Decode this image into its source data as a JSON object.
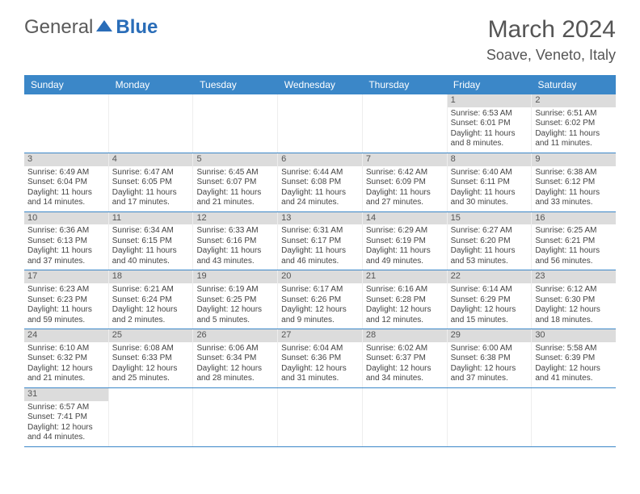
{
  "brand": {
    "part1": "General",
    "part2": "Blue"
  },
  "title": "March 2024",
  "location": "Soave, Veneto, Italy",
  "day_headers": [
    "Sunday",
    "Monday",
    "Tuesday",
    "Wednesday",
    "Thursday",
    "Friday",
    "Saturday"
  ],
  "colors": {
    "header_bg": "#3b87c8",
    "header_text": "#ffffff",
    "cell_head_bg": "#dcdcdc",
    "row_divider": "#3b87c8",
    "text": "#444444",
    "logo_gray": "#5a5a5a",
    "logo_blue": "#2a6db8"
  },
  "weeks": [
    [
      {
        "empty": true
      },
      {
        "empty": true
      },
      {
        "empty": true
      },
      {
        "empty": true
      },
      {
        "empty": true
      },
      {
        "num": "1",
        "sunrise": "Sunrise: 6:53 AM",
        "sunset": "Sunset: 6:01 PM",
        "daylight": "Daylight: 11 hours and 8 minutes."
      },
      {
        "num": "2",
        "sunrise": "Sunrise: 6:51 AM",
        "sunset": "Sunset: 6:02 PM",
        "daylight": "Daylight: 11 hours and 11 minutes."
      }
    ],
    [
      {
        "num": "3",
        "sunrise": "Sunrise: 6:49 AM",
        "sunset": "Sunset: 6:04 PM",
        "daylight": "Daylight: 11 hours and 14 minutes."
      },
      {
        "num": "4",
        "sunrise": "Sunrise: 6:47 AM",
        "sunset": "Sunset: 6:05 PM",
        "daylight": "Daylight: 11 hours and 17 minutes."
      },
      {
        "num": "5",
        "sunrise": "Sunrise: 6:45 AM",
        "sunset": "Sunset: 6:07 PM",
        "daylight": "Daylight: 11 hours and 21 minutes."
      },
      {
        "num": "6",
        "sunrise": "Sunrise: 6:44 AM",
        "sunset": "Sunset: 6:08 PM",
        "daylight": "Daylight: 11 hours and 24 minutes."
      },
      {
        "num": "7",
        "sunrise": "Sunrise: 6:42 AM",
        "sunset": "Sunset: 6:09 PM",
        "daylight": "Daylight: 11 hours and 27 minutes."
      },
      {
        "num": "8",
        "sunrise": "Sunrise: 6:40 AM",
        "sunset": "Sunset: 6:11 PM",
        "daylight": "Daylight: 11 hours and 30 minutes."
      },
      {
        "num": "9",
        "sunrise": "Sunrise: 6:38 AM",
        "sunset": "Sunset: 6:12 PM",
        "daylight": "Daylight: 11 hours and 33 minutes."
      }
    ],
    [
      {
        "num": "10",
        "sunrise": "Sunrise: 6:36 AM",
        "sunset": "Sunset: 6:13 PM",
        "daylight": "Daylight: 11 hours and 37 minutes."
      },
      {
        "num": "11",
        "sunrise": "Sunrise: 6:34 AM",
        "sunset": "Sunset: 6:15 PM",
        "daylight": "Daylight: 11 hours and 40 minutes."
      },
      {
        "num": "12",
        "sunrise": "Sunrise: 6:33 AM",
        "sunset": "Sunset: 6:16 PM",
        "daylight": "Daylight: 11 hours and 43 minutes."
      },
      {
        "num": "13",
        "sunrise": "Sunrise: 6:31 AM",
        "sunset": "Sunset: 6:17 PM",
        "daylight": "Daylight: 11 hours and 46 minutes."
      },
      {
        "num": "14",
        "sunrise": "Sunrise: 6:29 AM",
        "sunset": "Sunset: 6:19 PM",
        "daylight": "Daylight: 11 hours and 49 minutes."
      },
      {
        "num": "15",
        "sunrise": "Sunrise: 6:27 AM",
        "sunset": "Sunset: 6:20 PM",
        "daylight": "Daylight: 11 hours and 53 minutes."
      },
      {
        "num": "16",
        "sunrise": "Sunrise: 6:25 AM",
        "sunset": "Sunset: 6:21 PM",
        "daylight": "Daylight: 11 hours and 56 minutes."
      }
    ],
    [
      {
        "num": "17",
        "sunrise": "Sunrise: 6:23 AM",
        "sunset": "Sunset: 6:23 PM",
        "daylight": "Daylight: 11 hours and 59 minutes."
      },
      {
        "num": "18",
        "sunrise": "Sunrise: 6:21 AM",
        "sunset": "Sunset: 6:24 PM",
        "daylight": "Daylight: 12 hours and 2 minutes."
      },
      {
        "num": "19",
        "sunrise": "Sunrise: 6:19 AM",
        "sunset": "Sunset: 6:25 PM",
        "daylight": "Daylight: 12 hours and 5 minutes."
      },
      {
        "num": "20",
        "sunrise": "Sunrise: 6:17 AM",
        "sunset": "Sunset: 6:26 PM",
        "daylight": "Daylight: 12 hours and 9 minutes."
      },
      {
        "num": "21",
        "sunrise": "Sunrise: 6:16 AM",
        "sunset": "Sunset: 6:28 PM",
        "daylight": "Daylight: 12 hours and 12 minutes."
      },
      {
        "num": "22",
        "sunrise": "Sunrise: 6:14 AM",
        "sunset": "Sunset: 6:29 PM",
        "daylight": "Daylight: 12 hours and 15 minutes."
      },
      {
        "num": "23",
        "sunrise": "Sunrise: 6:12 AM",
        "sunset": "Sunset: 6:30 PM",
        "daylight": "Daylight: 12 hours and 18 minutes."
      }
    ],
    [
      {
        "num": "24",
        "sunrise": "Sunrise: 6:10 AM",
        "sunset": "Sunset: 6:32 PM",
        "daylight": "Daylight: 12 hours and 21 minutes."
      },
      {
        "num": "25",
        "sunrise": "Sunrise: 6:08 AM",
        "sunset": "Sunset: 6:33 PM",
        "daylight": "Daylight: 12 hours and 25 minutes."
      },
      {
        "num": "26",
        "sunrise": "Sunrise: 6:06 AM",
        "sunset": "Sunset: 6:34 PM",
        "daylight": "Daylight: 12 hours and 28 minutes."
      },
      {
        "num": "27",
        "sunrise": "Sunrise: 6:04 AM",
        "sunset": "Sunset: 6:36 PM",
        "daylight": "Daylight: 12 hours and 31 minutes."
      },
      {
        "num": "28",
        "sunrise": "Sunrise: 6:02 AM",
        "sunset": "Sunset: 6:37 PM",
        "daylight": "Daylight: 12 hours and 34 minutes."
      },
      {
        "num": "29",
        "sunrise": "Sunrise: 6:00 AM",
        "sunset": "Sunset: 6:38 PM",
        "daylight": "Daylight: 12 hours and 37 minutes."
      },
      {
        "num": "30",
        "sunrise": "Sunrise: 5:58 AM",
        "sunset": "Sunset: 6:39 PM",
        "daylight": "Daylight: 12 hours and 41 minutes."
      }
    ],
    [
      {
        "num": "31",
        "sunrise": "Sunrise: 6:57 AM",
        "sunset": "Sunset: 7:41 PM",
        "daylight": "Daylight: 12 hours and 44 minutes."
      },
      {
        "empty": true
      },
      {
        "empty": true
      },
      {
        "empty": true
      },
      {
        "empty": true
      },
      {
        "empty": true
      },
      {
        "empty": true
      }
    ]
  ]
}
